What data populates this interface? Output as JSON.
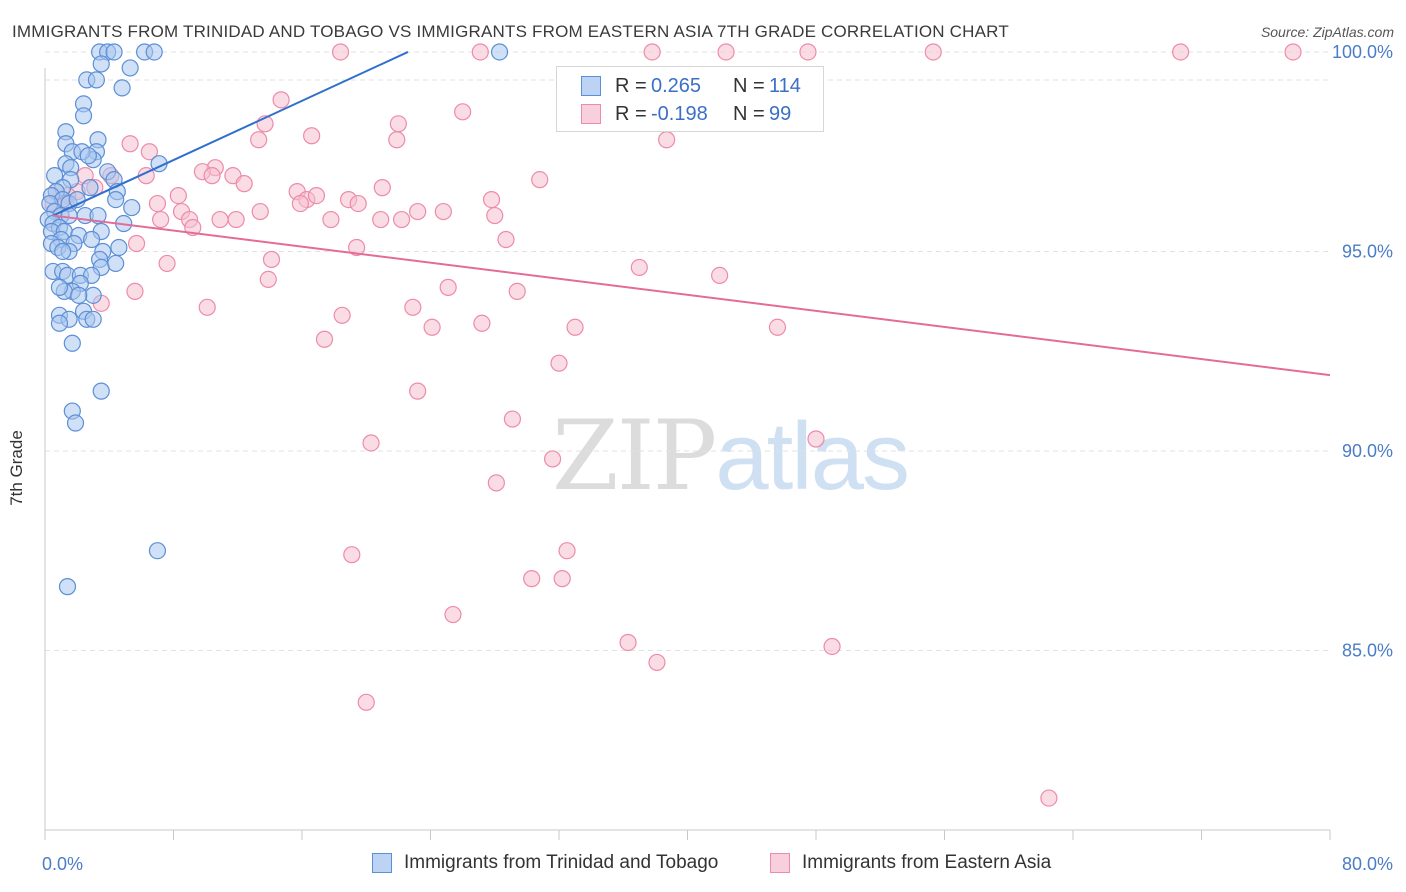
{
  "header": {
    "title": "IMMIGRANTS FROM TRINIDAD AND TOBAGO VS IMMIGRANTS FROM EASTERN ASIA 7TH GRADE CORRELATION CHART",
    "source": "Source: ZipAtlas.com"
  },
  "watermark": {
    "zip": "ZIP",
    "atlas": "atlas"
  },
  "legend": {
    "rows": [
      {
        "r_label": "R =",
        "r_value": "0.265",
        "n_label": "N =",
        "n_value": "114"
      },
      {
        "r_label": "R =",
        "r_value": "-0.198",
        "n_label": "N =",
        "n_value": "99"
      }
    ]
  },
  "colors": {
    "blue_fill": "#a9c7ef",
    "blue_stroke": "#5b8fd6",
    "blue_line": "#2f6fce",
    "pink_fill": "#f6bfd0",
    "pink_stroke": "#ee8aab",
    "pink_line": "#e46c97",
    "axis_text": "#4a7cc7",
    "grid": "#e2e2e2"
  },
  "chart_data": {
    "type": "scatter",
    "title": "IMMIGRANTS FROM TRINIDAD AND TOBAGO VS IMMIGRANTS FROM EASTERN ASIA 7TH GRADE CORRELATION CHART",
    "xlabel": "",
    "ylabel": "7th Grade",
    "xlim": [
      0,
      80
    ],
    "ylim": [
      80.5,
      100.3
    ],
    "x_tick_labels": [
      "0.0%",
      "80.0%"
    ],
    "y_ticks": [
      85,
      90,
      95,
      100
    ],
    "y_tick_labels": [
      "85.0%",
      "90.0%",
      "95.0%",
      "100.0%"
    ],
    "grid": true,
    "legend_position": "bottom",
    "series": [
      {
        "name": "Immigrants from Trinidad and Tobago",
        "r": 0.265,
        "n": 114,
        "trend": {
          "x": [
            0.5,
            22.6
          ],
          "y": [
            95.9,
            100.0
          ]
        },
        "points": [
          [
            3.4,
            100
          ],
          [
            3.9,
            100
          ],
          [
            4.3,
            100
          ],
          [
            6.2,
            100
          ],
          [
            6.8,
            100
          ],
          [
            28.3,
            100
          ],
          [
            3.5,
            99.7
          ],
          [
            5.3,
            99.6
          ],
          [
            2.6,
            99.3
          ],
          [
            3.2,
            99.3
          ],
          [
            4.8,
            99.1
          ],
          [
            2.4,
            98.7
          ],
          [
            2.4,
            98.4
          ],
          [
            1.3,
            98.0
          ],
          [
            3.3,
            97.8
          ],
          [
            1.3,
            97.7
          ],
          [
            1.7,
            97.5
          ],
          [
            3.2,
            97.5
          ],
          [
            3.0,
            97.3
          ],
          [
            2.3,
            97.5
          ],
          [
            2.7,
            97.4
          ],
          [
            1.3,
            97.2
          ],
          [
            1.6,
            97.1
          ],
          [
            7.1,
            97.2
          ],
          [
            3.9,
            97.0
          ],
          [
            1.6,
            96.8
          ],
          [
            0.6,
            96.9
          ],
          [
            1.1,
            96.6
          ],
          [
            4.3,
            96.8
          ],
          [
            0.7,
            96.5
          ],
          [
            0.4,
            96.4
          ],
          [
            1.1,
            96.3
          ],
          [
            1.5,
            96.2
          ],
          [
            2.0,
            96.3
          ],
          [
            2.8,
            96.6
          ],
          [
            4.5,
            96.5
          ],
          [
            4.4,
            96.3
          ],
          [
            5.4,
            96.1
          ],
          [
            0.3,
            96.2
          ],
          [
            0.6,
            96.0
          ],
          [
            1.0,
            95.9
          ],
          [
            1.5,
            95.9
          ],
          [
            0.2,
            95.8
          ],
          [
            0.5,
            95.7
          ],
          [
            0.9,
            95.6
          ],
          [
            0.4,
            95.5
          ],
          [
            1.2,
            95.5
          ],
          [
            2.5,
            95.9
          ],
          [
            3.3,
            95.9
          ],
          [
            4.9,
            95.7
          ],
          [
            3.5,
            95.5
          ],
          [
            2.1,
            95.4
          ],
          [
            2.9,
            95.3
          ],
          [
            1.0,
            95.3
          ],
          [
            1.8,
            95.2
          ],
          [
            0.4,
            95.2
          ],
          [
            0.8,
            95.1
          ],
          [
            1.5,
            95.0
          ],
          [
            3.6,
            95.0
          ],
          [
            4.6,
            95.1
          ],
          [
            1.1,
            95.0
          ],
          [
            3.4,
            94.8
          ],
          [
            3.5,
            94.6
          ],
          [
            4.4,
            94.7
          ],
          [
            0.5,
            94.5
          ],
          [
            1.1,
            94.5
          ],
          [
            1.4,
            94.4
          ],
          [
            2.2,
            94.4
          ],
          [
            2.9,
            94.4
          ],
          [
            2.2,
            94.2
          ],
          [
            1.7,
            94.0
          ],
          [
            1.2,
            94.0
          ],
          [
            0.9,
            94.1
          ],
          [
            3.0,
            93.9
          ],
          [
            2.1,
            93.9
          ],
          [
            2.4,
            93.5
          ],
          [
            2.6,
            93.3
          ],
          [
            0.9,
            93.4
          ],
          [
            1.5,
            93.3
          ],
          [
            0.9,
            93.2
          ],
          [
            3.0,
            93.3
          ],
          [
            1.7,
            92.7
          ],
          [
            3.5,
            91.5
          ],
          [
            1.7,
            91.0
          ],
          [
            1.9,
            90.7
          ],
          [
            7.0,
            87.5
          ],
          [
            1.4,
            86.6
          ]
        ]
      },
      {
        "name": "Immigrants from Eastern Asia",
        "r": -0.198,
        "n": 99,
        "trend": {
          "x": [
            0.5,
            80.0
          ],
          "y": [
            95.9,
            91.9
          ]
        },
        "points": [
          [
            18.4,
            100
          ],
          [
            27.1,
            100
          ],
          [
            37.8,
            100
          ],
          [
            42.4,
            100
          ],
          [
            47.5,
            100
          ],
          [
            55.3,
            100
          ],
          [
            70.7,
            100
          ],
          [
            77.7,
            100
          ],
          [
            14.7,
            98.8
          ],
          [
            26.0,
            98.5
          ],
          [
            22.0,
            98.2
          ],
          [
            13.7,
            98.2
          ],
          [
            16.6,
            97.9
          ],
          [
            13.3,
            97.8
          ],
          [
            21.9,
            97.8
          ],
          [
            38.7,
            97.8
          ],
          [
            5.3,
            97.7
          ],
          [
            6.5,
            97.5
          ],
          [
            2.5,
            96.9
          ],
          [
            4.1,
            96.9
          ],
          [
            6.3,
            96.9
          ],
          [
            10.6,
            97.1
          ],
          [
            9.8,
            97.0
          ],
          [
            10.4,
            96.9
          ],
          [
            11.7,
            96.9
          ],
          [
            12.4,
            96.7
          ],
          [
            15.7,
            96.5
          ],
          [
            16.3,
            96.3
          ],
          [
            16.9,
            96.4
          ],
          [
            18.9,
            96.3
          ],
          [
            21.0,
            96.6
          ],
          [
            27.8,
            96.3
          ],
          [
            30.8,
            96.8
          ],
          [
            2.0,
            96.5
          ],
          [
            3.1,
            96.6
          ],
          [
            0.7,
            96.5
          ],
          [
            1.4,
            96.4
          ],
          [
            0.5,
            96.2
          ],
          [
            1.3,
            96.2
          ],
          [
            7.0,
            96.2
          ],
          [
            8.3,
            96.4
          ],
          [
            8.5,
            96.0
          ],
          [
            15.9,
            96.2
          ],
          [
            19.5,
            96.2
          ],
          [
            13.4,
            96.0
          ],
          [
            9.0,
            95.8
          ],
          [
            10.9,
            95.8
          ],
          [
            11.9,
            95.8
          ],
          [
            17.8,
            95.8
          ],
          [
            20.9,
            95.8
          ],
          [
            23.2,
            96.0
          ],
          [
            24.8,
            96.0
          ],
          [
            28.0,
            95.9
          ],
          [
            22.2,
            95.8
          ],
          [
            7.2,
            95.8
          ],
          [
            9.2,
            95.6
          ],
          [
            28.7,
            95.3
          ],
          [
            5.7,
            95.2
          ],
          [
            19.4,
            95.1
          ],
          [
            14.1,
            94.8
          ],
          [
            7.6,
            94.7
          ],
          [
            37.0,
            94.6
          ],
          [
            42.0,
            94.4
          ],
          [
            13.9,
            94.3
          ],
          [
            25.1,
            94.1
          ],
          [
            29.4,
            94.0
          ],
          [
            5.6,
            94.0
          ],
          [
            3.5,
            93.7
          ],
          [
            10.1,
            93.6
          ],
          [
            22.9,
            93.6
          ],
          [
            18.5,
            93.4
          ],
          [
            27.2,
            93.2
          ],
          [
            24.1,
            93.1
          ],
          [
            33.0,
            93.1
          ],
          [
            45.6,
            93.1
          ],
          [
            17.4,
            92.8
          ],
          [
            32.0,
            92.2
          ],
          [
            23.2,
            91.5
          ],
          [
            29.1,
            90.8
          ],
          [
            20.3,
            90.2
          ],
          [
            48.0,
            90.3
          ],
          [
            31.6,
            89.8
          ],
          [
            28.1,
            89.2
          ],
          [
            19.1,
            87.4
          ],
          [
            32.5,
            87.5
          ],
          [
            30.3,
            86.8
          ],
          [
            32.2,
            86.8
          ],
          [
            25.4,
            85.9
          ],
          [
            36.3,
            85.2
          ],
          [
            49.0,
            85.1
          ],
          [
            38.1,
            84.7
          ],
          [
            20.0,
            83.7
          ],
          [
            62.5,
            81.3
          ]
        ]
      }
    ]
  }
}
